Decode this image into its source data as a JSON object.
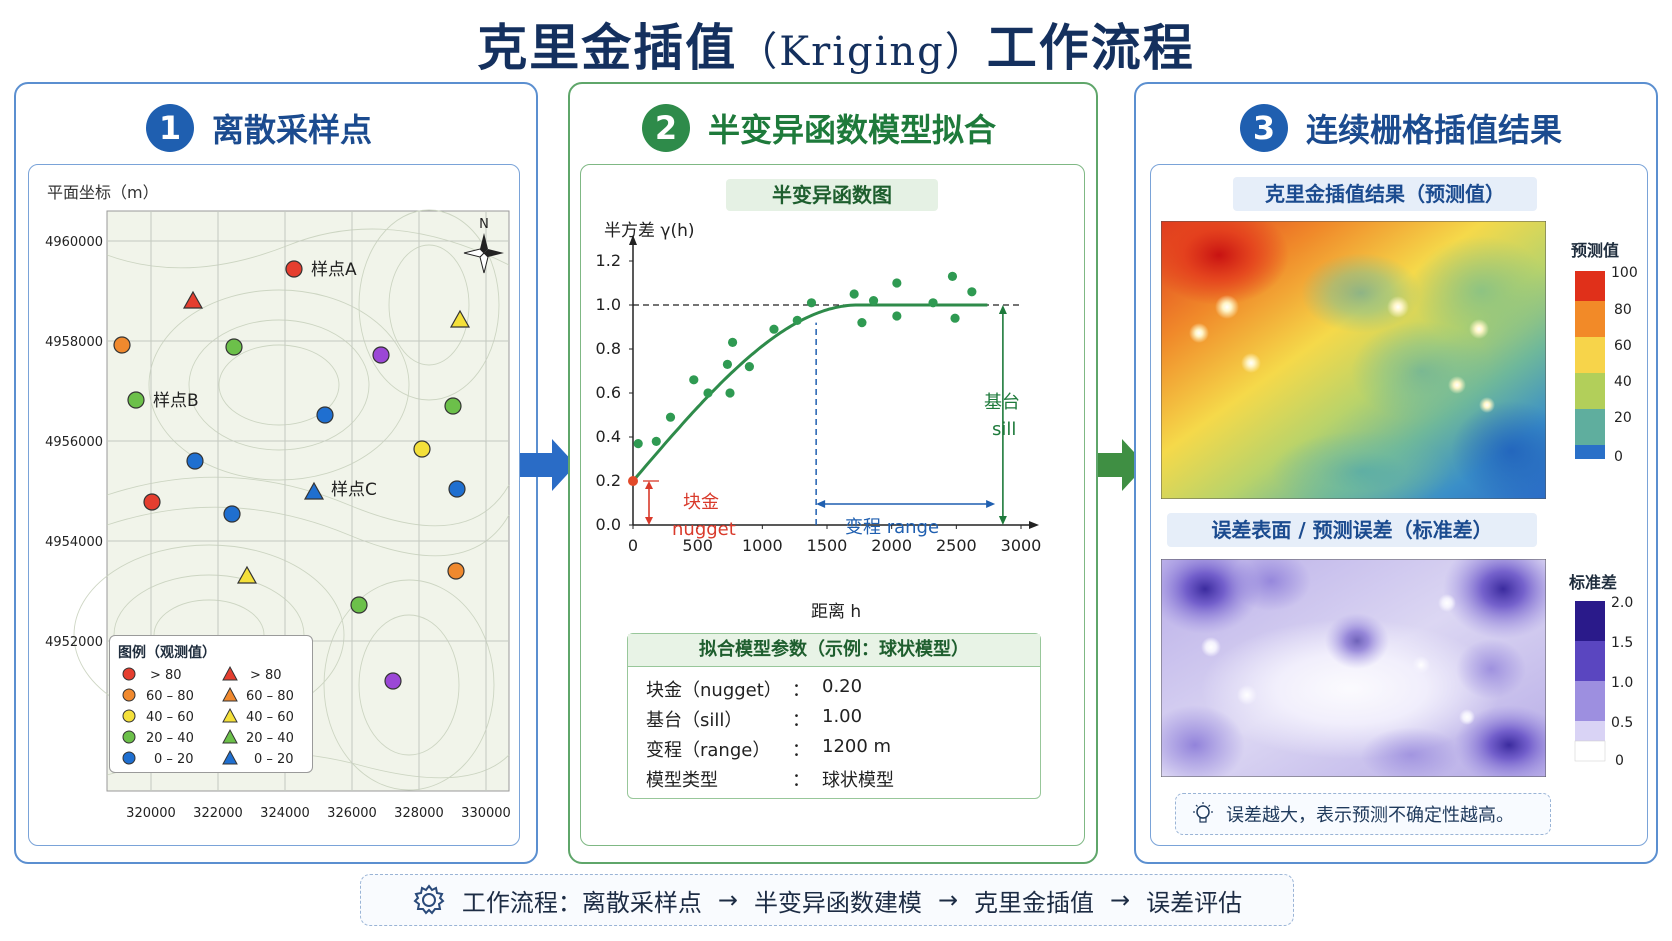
{
  "title": {
    "main": "克里金插值",
    "latin": "（Kriging）",
    "tail": "工作流程"
  },
  "colors": {
    "blue": "#1f5fb0",
    "green": "#2e8b4a",
    "red_annot": "#d93a2b"
  },
  "panel1": {
    "number": "1",
    "heading": "离散采样点",
    "coord_label": "平面坐标（m）",
    "y_ticks": [
      "4960000",
      "4958000",
      "4956000",
      "4954000",
      "4952000"
    ],
    "x_ticks": [
      "320000",
      "322000",
      "324000",
      "326000",
      "328000",
      "330000"
    ],
    "north": "N",
    "sample_labels": {
      "a": "样点A",
      "b": "样点B",
      "c": "样点C"
    },
    "legend": {
      "title": "图例（观测值）",
      "items": [
        {
          "label": "> 80",
          "color": "#e53e2f"
        },
        {
          "label": "60 – 80",
          "color": "#f0892e"
        },
        {
          "label": "40 – 60",
          "color": "#f4e03a"
        },
        {
          "label": "20 – 40",
          "color": "#6cc04a"
        },
        {
          "label": "0 – 20",
          "color": "#1f6fd0"
        }
      ]
    }
  },
  "panel2": {
    "number": "2",
    "heading": "半变异函数模型拟合",
    "chart_title": "半变异函数图",
    "y_axis_label": "半方差  γ(h)",
    "x_axis_label": "距离  h",
    "nugget_cn": "块金",
    "nugget_en": "nugget",
    "sill_cn": "基台",
    "sill_en": "sill",
    "range_label": "变程  range",
    "params_title": "拟合模型参数（示例：球状模型）",
    "params": [
      {
        "name": "块金（nugget）",
        "sep": "：",
        "value": "0.20"
      },
      {
        "name": "基台（sill）",
        "sep": "：",
        "value": "1.00"
      },
      {
        "name": "变程（range）",
        "sep": "：",
        "value": "1200 m"
      },
      {
        "name": "模型类型",
        "sep": "：",
        "value": "球状模型"
      }
    ]
  },
  "chart_data": {
    "type": "scatter",
    "xlabel": "距离  h",
    "ylabel": "半方差  γ(h)",
    "xlim": [
      0,
      3000
    ],
    "ylim": [
      0,
      1.2
    ],
    "x_ticks": [
      "0",
      "500",
      "1000",
      "1500",
      "2000",
      "2500",
      "3000"
    ],
    "y_ticks": [
      "0.0",
      "0.2",
      "0.4",
      "0.6",
      "0.8",
      "1.0",
      "1.2"
    ],
    "points": [
      {
        "x": 40,
        "y": 0.37
      },
      {
        "x": 180,
        "y": 0.38
      },
      {
        "x": 290,
        "y": 0.49
      },
      {
        "x": 470,
        "y": 0.66
      },
      {
        "x": 580,
        "y": 0.6
      },
      {
        "x": 730,
        "y": 0.73
      },
      {
        "x": 750,
        "y": 0.6
      },
      {
        "x": 770,
        "y": 0.83
      },
      {
        "x": 900,
        "y": 0.72
      },
      {
        "x": 1090,
        "y": 0.89
      },
      {
        "x": 1270,
        "y": 0.93
      },
      {
        "x": 1380,
        "y": 1.01
      },
      {
        "x": 1710,
        "y": 1.05
      },
      {
        "x": 1770,
        "y": 0.92
      },
      {
        "x": 1860,
        "y": 1.02
      },
      {
        "x": 2040,
        "y": 1.1
      },
      {
        "x": 2040,
        "y": 0.95
      },
      {
        "x": 2320,
        "y": 1.01
      },
      {
        "x": 2470,
        "y": 1.13
      },
      {
        "x": 2490,
        "y": 0.94
      },
      {
        "x": 2620,
        "y": 1.06
      }
    ],
    "model": {
      "type": "spherical",
      "nugget": 0.2,
      "sill": 1.0,
      "range": 1200
    }
  },
  "panel3": {
    "number": "3",
    "heading": "连续栅格插值结果",
    "pred_title": "克里金插值结果（预测值）",
    "pred_scale_title": "预测值",
    "pred_scale_ticks": [
      "100",
      "80",
      "60",
      "40",
      "20",
      "0"
    ],
    "err_title": "误差表面 / 预测误差（标准差）",
    "err_scale_title": "标准差",
    "err_scale_ticks": [
      "2.0",
      "1.5",
      "1.0",
      "0.5",
      "0"
    ],
    "note": "误差越大，表示预测不确定性越高。"
  },
  "workflow": {
    "label": "工作流程：",
    "steps": [
      "离散采样点",
      "半变异函数建模",
      "克里金插值",
      "误差评估"
    ],
    "arrow": "→"
  }
}
